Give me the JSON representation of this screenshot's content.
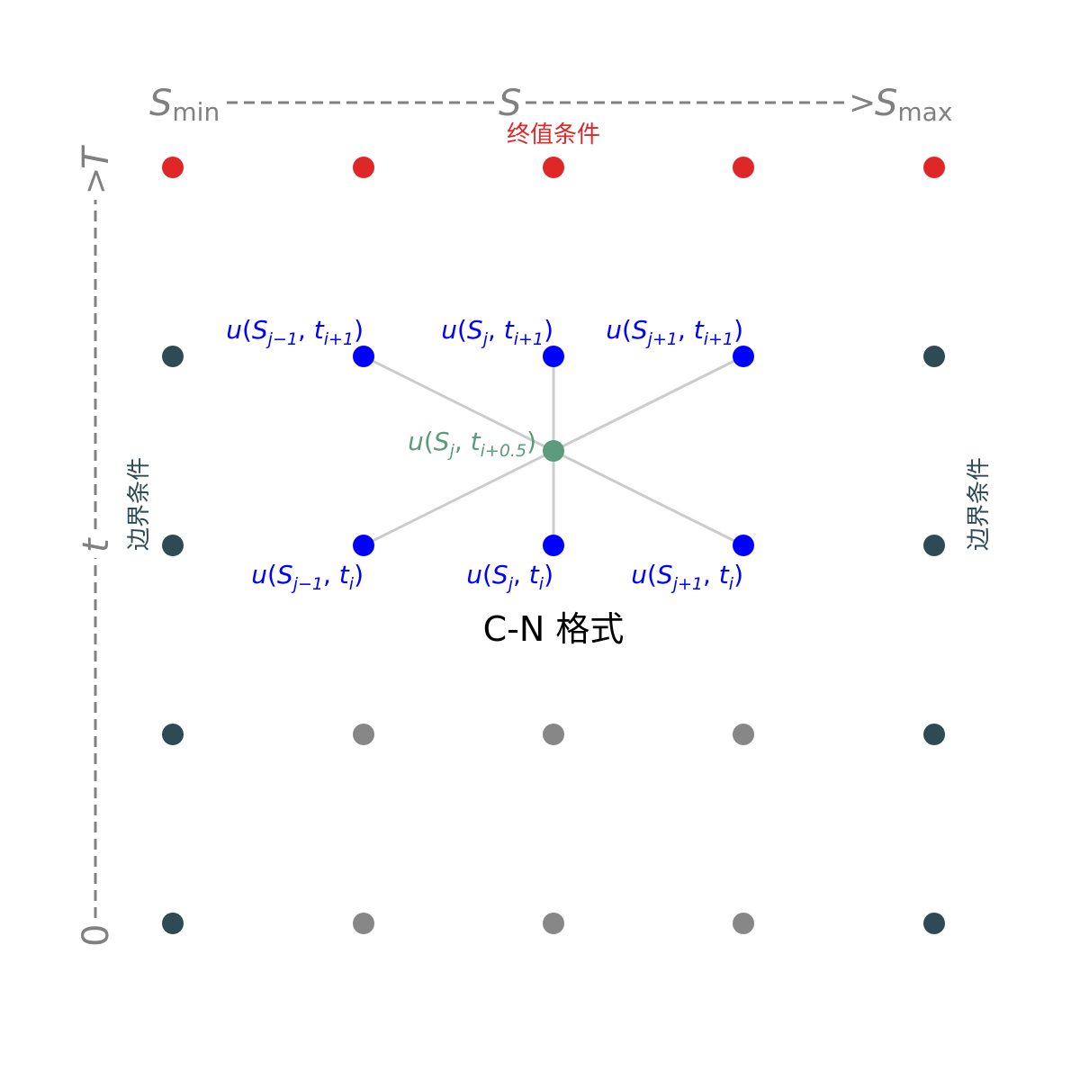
{
  "colors": {
    "terminal": "#e02727",
    "boundary": "#2e4a54",
    "stencil": "#0000ff",
    "interior": "#878787",
    "midpoint": "#5c9c7c",
    "connector": "#cccccc",
    "axis": "#808080",
    "title": "#000000"
  },
  "s_axis": {
    "start": {
      "base": "S",
      "sub": "min"
    },
    "middle": {
      "base": "S"
    },
    "arrow_head": ">",
    "end": {
      "base": "S",
      "sub": "max"
    }
  },
  "t_axis": {
    "start": "0",
    "middle": "t",
    "arrow_head": ">",
    "end": "T"
  },
  "labels": {
    "terminal_condition": "终值条件",
    "boundary_left": "边界条件",
    "boundary_right": "边界条件",
    "scheme_title": "C-N 格式"
  },
  "grid": {
    "columns": 5,
    "rows": 5,
    "node_types": [
      [
        "terminal",
        "terminal",
        "terminal",
        "terminal",
        "terminal"
      ],
      [
        "boundary",
        "stencil",
        "stencil",
        "stencil",
        "boundary"
      ],
      [
        "boundary",
        "stencil",
        "stencil",
        "stencil",
        "boundary"
      ],
      [
        "boundary",
        "interior",
        "interior",
        "interior",
        "boundary"
      ],
      [
        "boundary",
        "interior",
        "interior",
        "interior",
        "boundary"
      ]
    ]
  },
  "stencil_labels": {
    "upper_left": {
      "S_sub": "j−1",
      "t_sub": "i+1"
    },
    "upper_mid": {
      "S_sub": "j",
      "t_sub": "i+1"
    },
    "upper_right": {
      "S_sub": "j+1",
      "t_sub": "i+1"
    },
    "lower_left": {
      "S_sub": "j−1",
      "t_sub": "i"
    },
    "lower_mid": {
      "S_sub": "j",
      "t_sub": "i"
    },
    "lower_right": {
      "S_sub": "j+1",
      "t_sub": "i"
    },
    "midpoint": {
      "S_sub": "j",
      "t_sub": "i+0.5"
    }
  }
}
